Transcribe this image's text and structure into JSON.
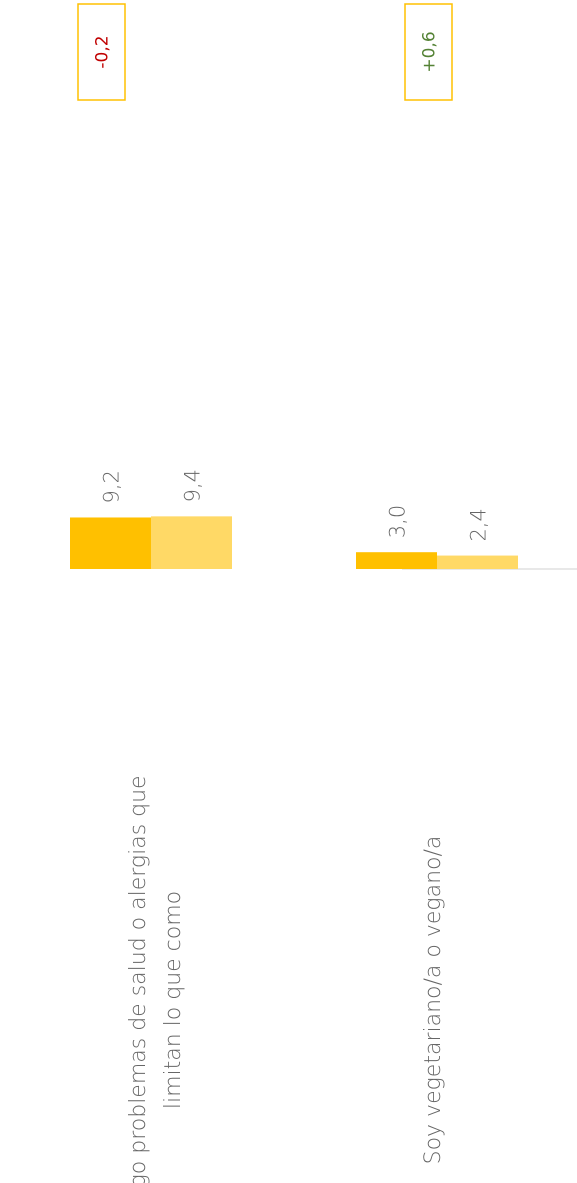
{
  "chart_data": {
    "type": "bar",
    "orientation": "rotated",
    "categories": [
      [
        "Tengo problemas de salud o alergias que",
        "limitan lo que como"
      ],
      [
        "Soy vegetariano/a o vegano/a"
      ]
    ],
    "series": [
      {
        "values": [
          9.2,
          3.0
        ],
        "labels": [
          "9,2",
          "3,0"
        ],
        "color": "#FFC000"
      },
      {
        "values": [
          9.4,
          2.4
        ],
        "labels": [
          "9,4",
          "2,4"
        ],
        "color": "#FFD966"
      }
    ],
    "differences": [
      {
        "text": "-0,2",
        "color": "#C00000"
      },
      {
        "text": "+0,6",
        "color": "#548235"
      }
    ],
    "box_border_color": "#FFC000",
    "baseline_color": "#D9D9D9",
    "grid": false,
    "legend": "none"
  }
}
